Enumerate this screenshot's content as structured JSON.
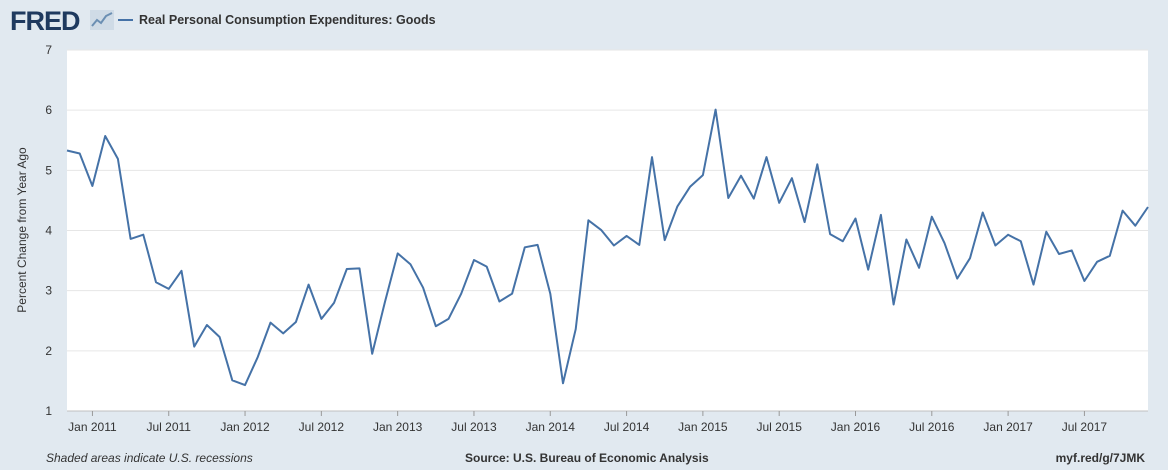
{
  "header": {
    "logo_text": "FRED",
    "logo_icon": "chart-line-icon"
  },
  "footer": {
    "note": "Shaded areas indicate U.S. recessions",
    "source": "Source: U.S. Bureau of Economic Analysis",
    "url": "myf.red/g/7JMK"
  },
  "colors": {
    "series": "#4572a7",
    "background": "#e1e9f0",
    "plot": "#ffffff"
  },
  "chart_data": {
    "type": "line",
    "title": "",
    "xlabel": "",
    "ylabel": "Percent Change from Year Ago",
    "ylim": [
      1,
      7
    ],
    "yticks": [
      1,
      2,
      3,
      4,
      5,
      6,
      7
    ],
    "x_start": "2010-11",
    "x_end": "2017-12",
    "xticks": [
      {
        "label": "Jan 2011",
        "month": 2
      },
      {
        "label": "Jul 2011",
        "month": 8
      },
      {
        "label": "Jan 2012",
        "month": 14
      },
      {
        "label": "Jul 2012",
        "month": 20
      },
      {
        "label": "Jan 2013",
        "month": 26
      },
      {
        "label": "Jul 2013",
        "month": 32
      },
      {
        "label": "Jan 2014",
        "month": 38
      },
      {
        "label": "Jul 2014",
        "month": 44
      },
      {
        "label": "Jan 2015",
        "month": 50
      },
      {
        "label": "Jul 2015",
        "month": 56
      },
      {
        "label": "Jan 2016",
        "month": 62
      },
      {
        "label": "Jul 2016",
        "month": 68
      },
      {
        "label": "Jan 2017",
        "month": 74
      },
      {
        "label": "Jul 2017",
        "month": 80
      }
    ],
    "series": [
      {
        "name": "Real Personal Consumption Expenditures: Goods",
        "values": [
          5.33,
          5.28,
          4.74,
          5.57,
          5.19,
          3.86,
          3.93,
          3.14,
          3.03,
          3.33,
          2.07,
          2.43,
          2.23,
          1.51,
          1.43,
          1.9,
          2.47,
          2.29,
          2.48,
          3.1,
          2.53,
          2.8,
          3.36,
          3.37,
          1.95,
          2.81,
          3.62,
          3.44,
          3.05,
          2.41,
          2.53,
          2.95,
          3.51,
          3.4,
          2.82,
          2.95,
          3.72,
          3.76,
          2.95,
          1.46,
          2.36,
          4.17,
          4.01,
          3.75,
          3.91,
          3.76,
          5.22,
          3.84,
          4.4,
          4.73,
          4.92,
          6.01,
          4.54,
          4.91,
          4.53,
          5.22,
          4.46,
          4.87,
          4.14,
          5.1,
          3.94,
          3.82,
          4.2,
          3.35,
          4.26,
          2.77,
          3.85,
          3.38,
          4.23,
          3.79,
          3.2,
          3.54,
          4.3,
          3.75,
          3.93,
          3.82,
          3.1,
          3.98,
          3.61,
          3.67,
          3.16,
          3.48,
          3.58,
          4.33,
          4.08,
          4.39
        ]
      }
    ]
  }
}
